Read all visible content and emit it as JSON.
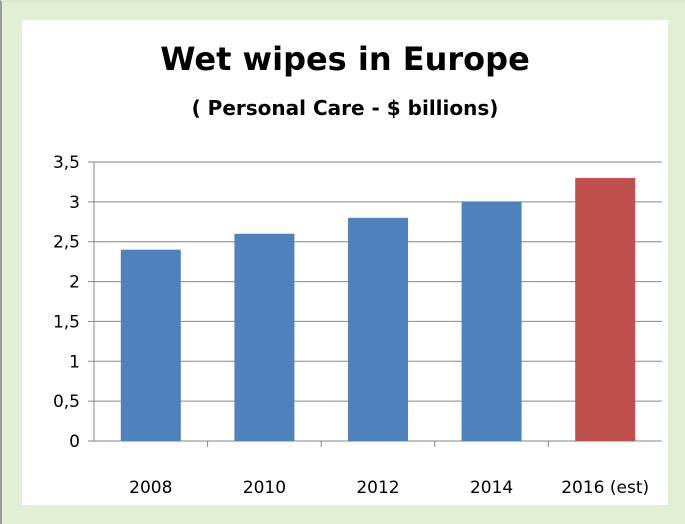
{
  "chart_data": {
    "type": "bar",
    "title": "Wet wipes in Europe",
    "subtitle": "( Personal Care - $ billions)",
    "categories": [
      "2008",
      "2010",
      "2012",
      "2014",
      "2016 (est)"
    ],
    "values": [
      2.4,
      2.6,
      2.8,
      3.0,
      3.3
    ],
    "ylim": [
      0,
      3.5
    ],
    "yticks": [
      "0",
      "0,5",
      "1",
      "1,5",
      "2",
      "2,5",
      "3",
      "3,5"
    ],
    "grid": true,
    "legend": "none",
    "colors": {
      "actual": "#4f81bd",
      "estimate": "#c0504d"
    },
    "estimate_index": 4
  }
}
